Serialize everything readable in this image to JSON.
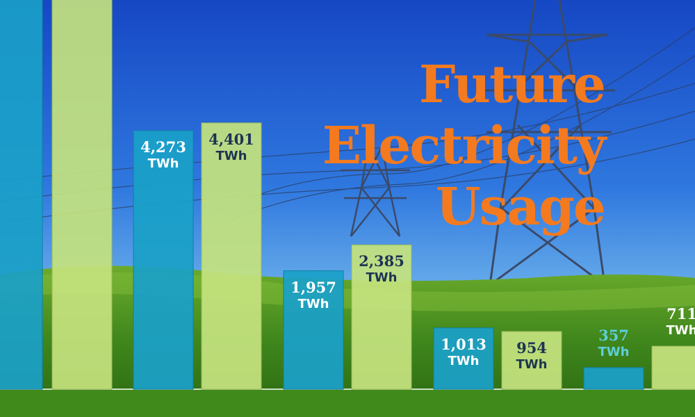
{
  "title_lines": [
    "Future",
    "Electricity",
    "Usage"
  ],
  "colors": {
    "title": "#f47a1f",
    "bar_blue": "#1aa0c8",
    "bar_green": "#c4e27e",
    "label_on_blue": "#ffffff",
    "label_on_green": "#1d3452",
    "label_above_blue": "#5ccfd8",
    "label_above_green": "#ffffff"
  },
  "chart_data": {
    "type": "bar",
    "unit": "TWh",
    "values": [
      4273,
      4401,
      1957,
      2385,
      1013,
      954,
      357,
      711
    ],
    "labels": [
      "4,273",
      "4,401",
      "1,957",
      "2,385",
      "1,013",
      "954",
      "357",
      "711"
    ],
    "colors": [
      "blue",
      "green",
      "blue",
      "green",
      "blue",
      "green",
      "blue",
      "green"
    ]
  }
}
